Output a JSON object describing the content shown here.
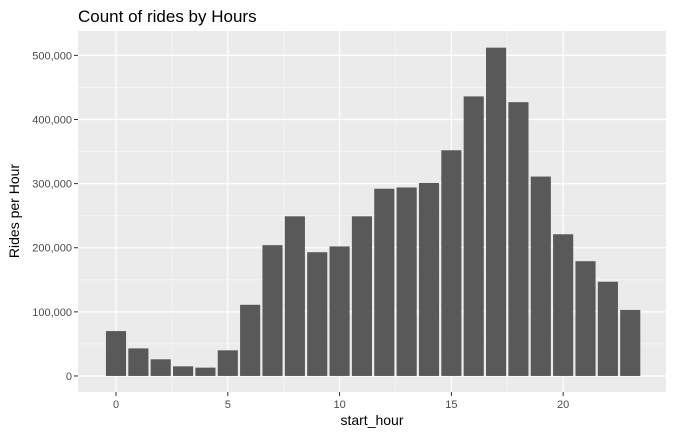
{
  "chart_data": {
    "type": "bar",
    "title": "Count of rides by Hours",
    "xlabel": "start_hour",
    "ylabel": "Rides per Hour",
    "x": [
      0,
      1,
      2,
      3,
      4,
      5,
      6,
      7,
      8,
      9,
      10,
      11,
      12,
      13,
      14,
      15,
      16,
      17,
      18,
      19,
      20,
      21,
      22,
      23
    ],
    "values": [
      70000,
      43000,
      26000,
      15000,
      13000,
      40000,
      111000,
      204000,
      249000,
      193000,
      202000,
      249000,
      292000,
      294000,
      301000,
      352000,
      436000,
      512000,
      427000,
      311000,
      221000,
      179000,
      147000,
      103000
    ],
    "xlim": [
      -1.7,
      24.6
    ],
    "ylim": [
      -25000,
      538000
    ],
    "x_ticks": [
      0,
      5,
      10,
      15,
      20
    ],
    "x_tick_labels": [
      "0",
      "5",
      "10",
      "15",
      "20"
    ],
    "y_ticks": [
      0,
      100000,
      200000,
      300000,
      400000,
      500000
    ],
    "y_tick_labels": [
      "0",
      "100,000",
      "200,000",
      "300,000",
      "400,000",
      "500,000"
    ],
    "grid": true,
    "colors": {
      "panel_background": "#ebebeb",
      "grid_major": "#ffffff",
      "grid_minor": "#f5f5f5",
      "bar_fill": "#595959",
      "tick_mark": "#333333"
    }
  }
}
